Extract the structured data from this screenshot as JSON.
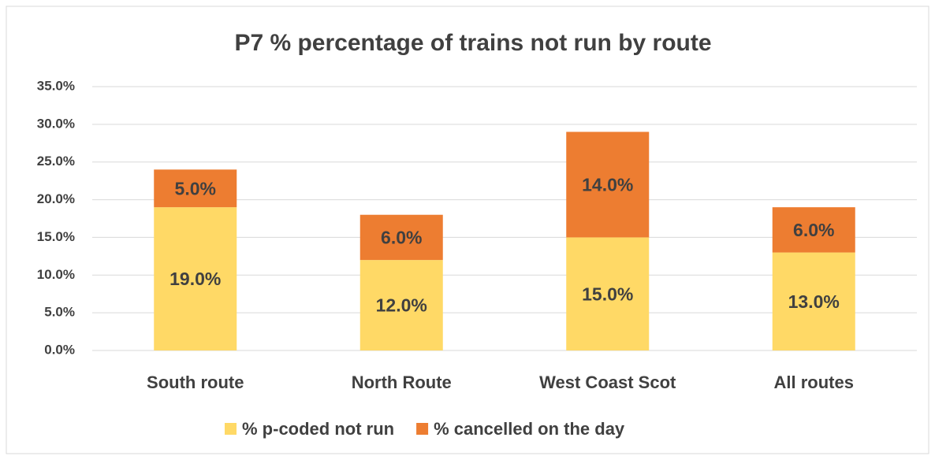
{
  "chart_data": {
    "type": "stacked_bar",
    "title": "P7 % percentage of trains not run by route",
    "categories": [
      "South route",
      "North Route",
      "West Coast Scot",
      "All routes"
    ],
    "series": [
      {
        "name": "% p-coded not run",
        "color": "#FFD966",
        "values": [
          19,
          12,
          15,
          13
        ],
        "value_labels": [
          "19.0%",
          "12.0%",
          "15.0%",
          "13.0%"
        ]
      },
      {
        "name": "% cancelled on the day",
        "color": "#ED7D31",
        "values": [
          5,
          6,
          14,
          6
        ],
        "value_labels": [
          "5.0%",
          "6.0%",
          "14.0%",
          "6.0%"
        ]
      }
    ],
    "ylim": [
      0,
      35
    ],
    "yticks": [
      {
        "value": 0,
        "label": "0.0%"
      },
      {
        "value": 5,
        "label": "5.0%"
      },
      {
        "value": 10,
        "label": "10.0%"
      },
      {
        "value": 15,
        "label": "15.0%"
      },
      {
        "value": 20,
        "label": "20.0%"
      },
      {
        "value": 25,
        "label": "25.0%"
      },
      {
        "value": 30,
        "label": "30.0%"
      },
      {
        "value": 35,
        "label": "35.0%"
      }
    ],
    "grid": true,
    "legend": "bottom"
  }
}
